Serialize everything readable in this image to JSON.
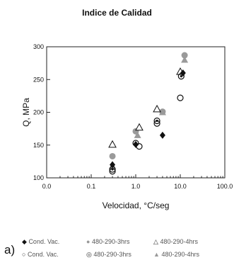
{
  "chart_data": {
    "type": "scatter",
    "title": "Indice de Calidad",
    "xlabel": "Velocidad, °C/seg",
    "ylabel": "Q, MPa",
    "panel_label": "a)",
    "xscale": "log",
    "xlim": [
      0.01,
      100
    ],
    "ylim": [
      100,
      300
    ],
    "xticks": [
      "0.0",
      "0.1",
      "1.0",
      "10.0"
    ],
    "yticks": [
      "100",
      "150",
      "200",
      "250",
      "300"
    ],
    "grid": false,
    "legend_placement": "bottom",
    "series": [
      {
        "name": "Cond. Vac.",
        "marker": "filled-diamond",
        "points": [
          [
            0.3,
            120
          ],
          [
            1.0,
            151
          ],
          [
            4.0,
            165
          ],
          [
            11.5,
            260
          ]
        ]
      },
      {
        "name": "480-290-3hrs",
        "marker": "filled-circle",
        "points": [
          [
            0.3,
            133
          ],
          [
            1.0,
            171
          ],
          [
            4.0,
            201
          ],
          [
            12.5,
            287
          ]
        ]
      },
      {
        "name": "480-290-4hrs",
        "marker": "open-triangle",
        "points": [
          [
            0.3,
            151
          ],
          [
            1.2,
            177
          ],
          [
            3.0,
            205
          ],
          [
            10.0,
            262
          ]
        ]
      },
      {
        "name": "Cond. Vac.",
        "marker": "open-circle",
        "points": [
          [
            0.3,
            110
          ],
          [
            1.2,
            148
          ],
          [
            3.0,
            183
          ],
          [
            10.0,
            222
          ]
        ]
      },
      {
        "name": "480-290-3hrs",
        "marker": "open-circle-dot",
        "points": [
          [
            0.3,
            113
          ],
          [
            1.0,
            153
          ],
          [
            3.0,
            187
          ],
          [
            10.5,
            255
          ]
        ]
      },
      {
        "name": "480-290-4hrs",
        "marker": "gray-triangle",
        "points": [
          [
            0.3,
            118
          ],
          [
            1.1,
            165
          ],
          [
            4.0,
            200
          ],
          [
            12.5,
            280
          ]
        ]
      }
    ]
  },
  "colors": {
    "axis": "#222222",
    "black": "#111111",
    "gray": "#9a9a9a",
    "legend_text": "#555555"
  }
}
